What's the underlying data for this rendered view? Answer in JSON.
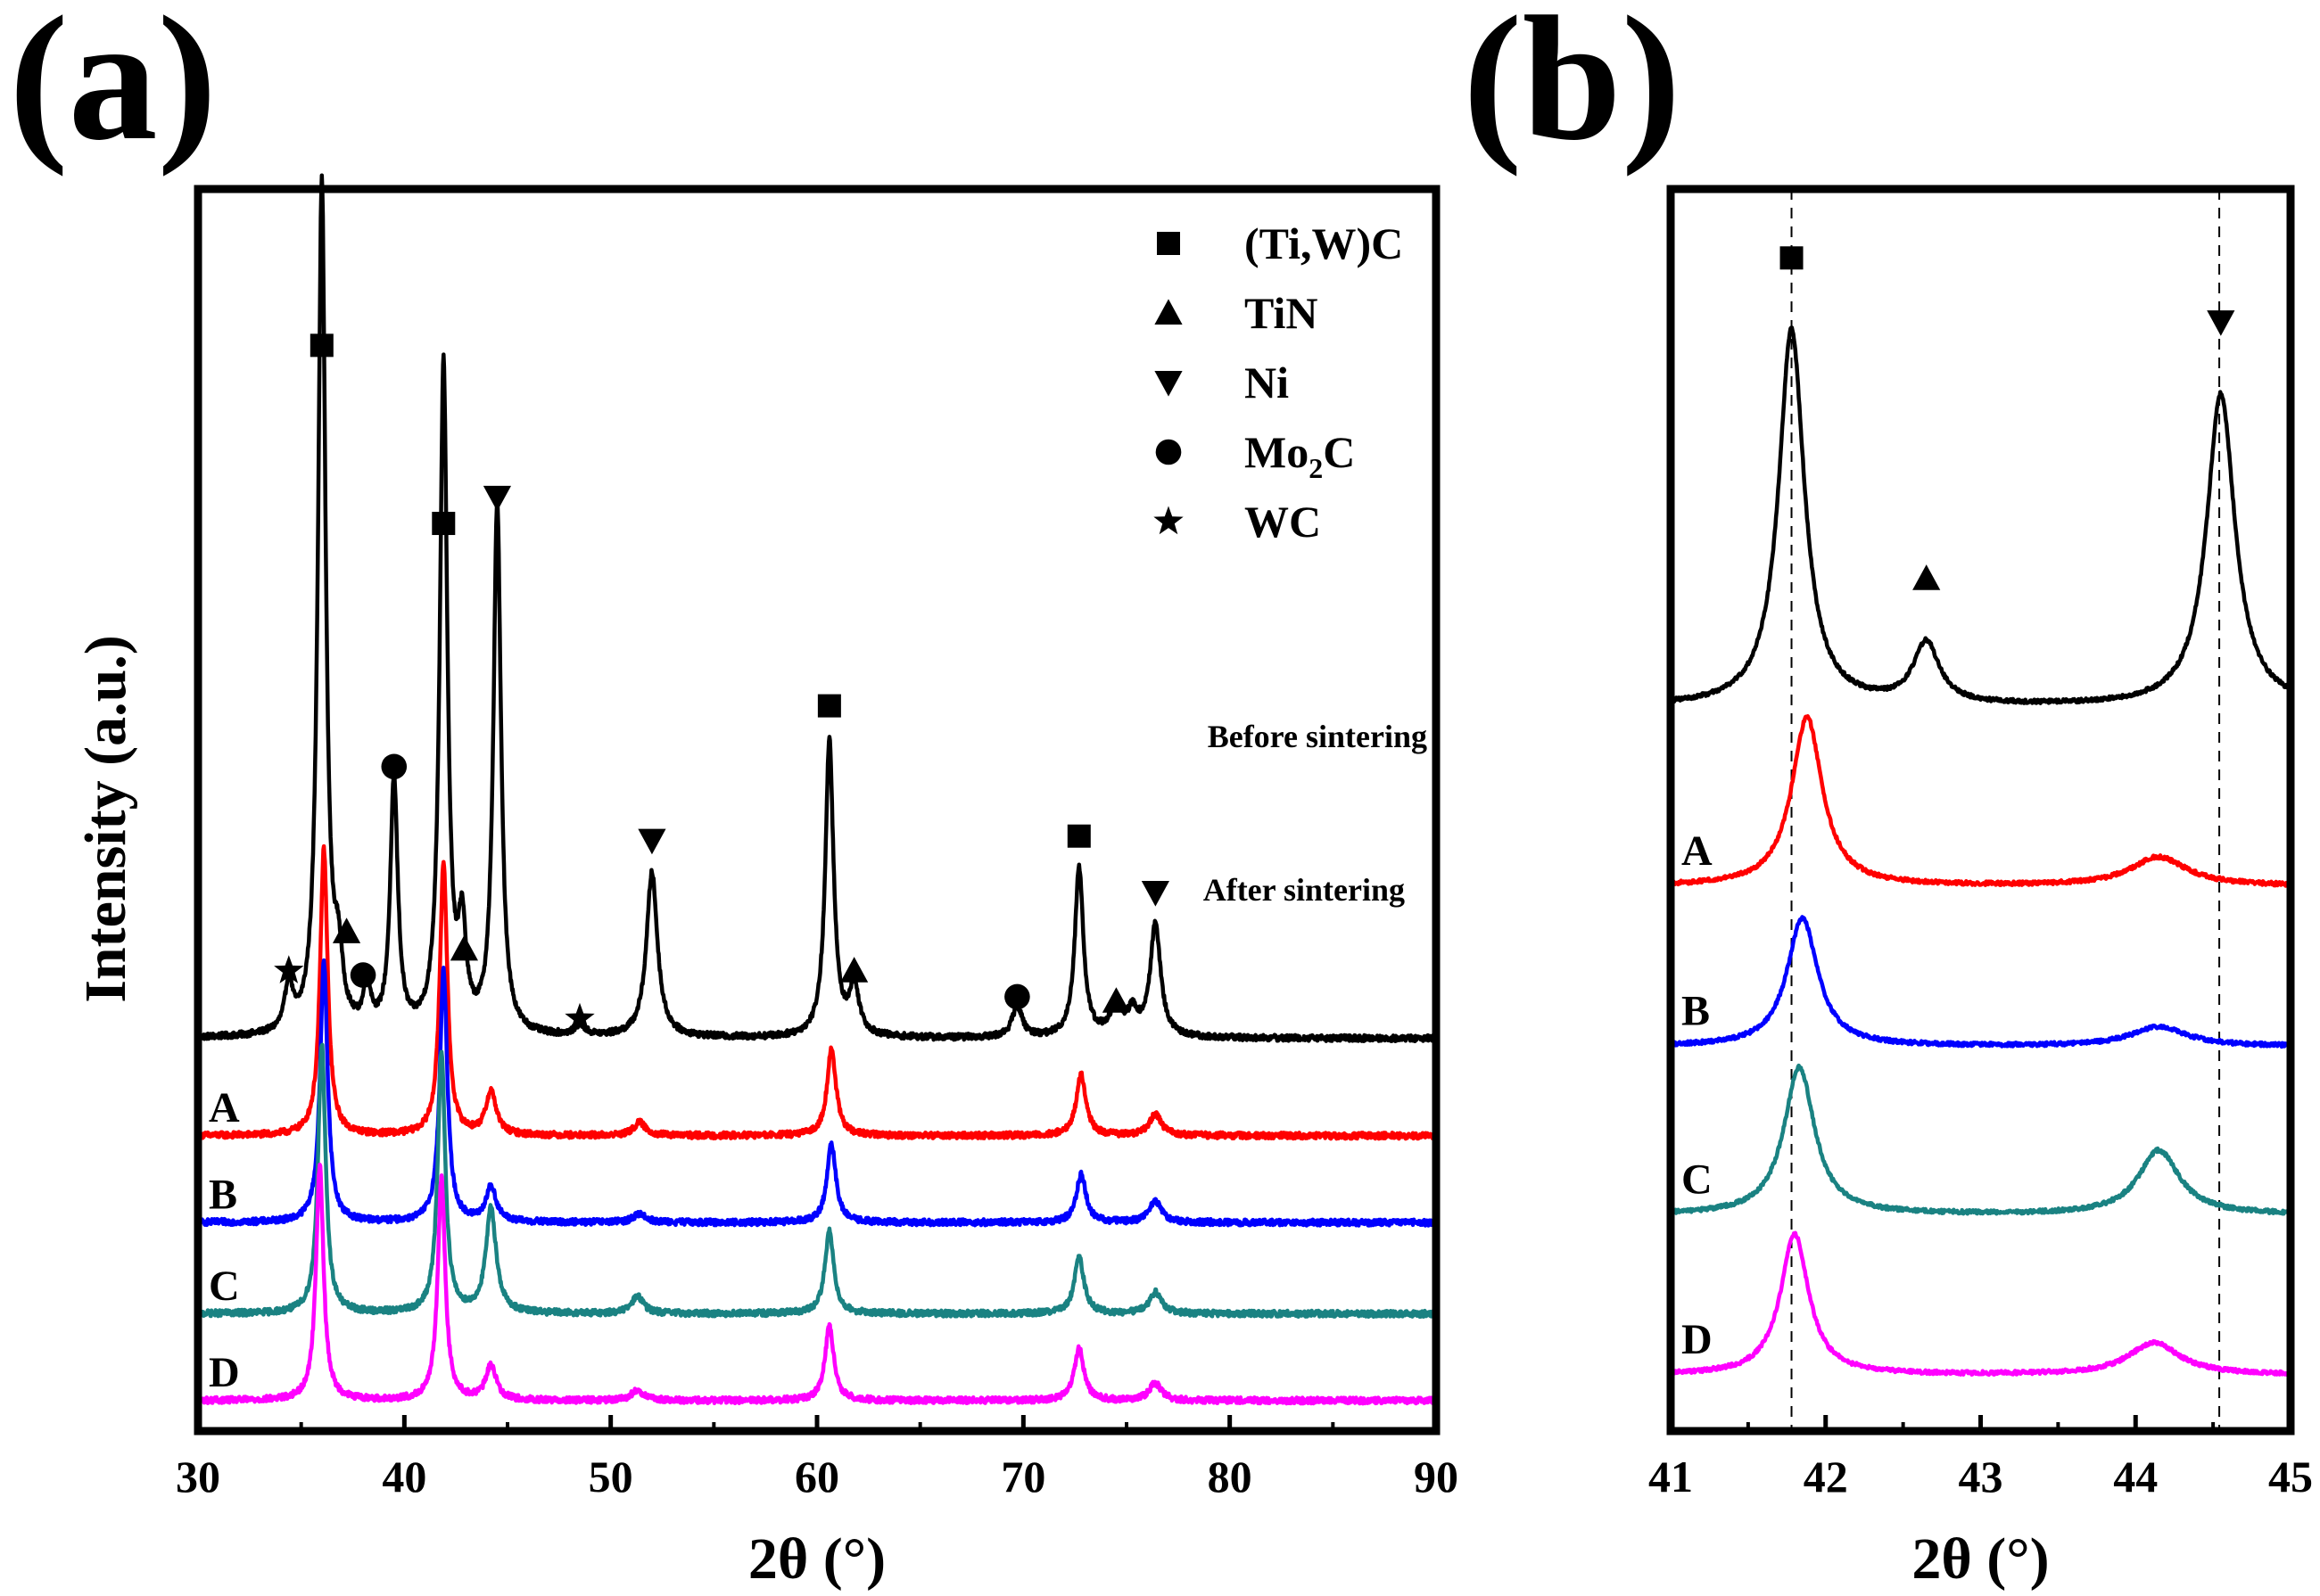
{
  "panels": {
    "a_letter": "(a)",
    "b_letter": "(b)"
  },
  "colors": {
    "Before sintering": "#000000",
    "A": "#ff0000",
    "B": "#0000ff",
    "C": "#1a8282",
    "D": "#ff00ff"
  },
  "legend": [
    {
      "symbol": "square-marker-icon",
      "label": "(Ti,W)C"
    },
    {
      "symbol": "triangle-up-marker-icon",
      "label": "TiN"
    },
    {
      "symbol": "triangle-down-marker-icon",
      "label": "Ni"
    },
    {
      "symbol": "circle-marker-icon",
      "label": "Mo",
      "sub": "2",
      "suffix": "C"
    },
    {
      "symbol": "star-marker-icon",
      "label": "WC"
    }
  ],
  "notes": {
    "before": "Before sintering",
    "after": "After sintering"
  },
  "chart_data": [
    {
      "type": "line",
      "panel": "(a)",
      "xlabel": "2θ (°)",
      "ylabel": "Intensity (a.u.)",
      "xlim": [
        30,
        90
      ],
      "xticks": [
        30,
        40,
        50,
        60,
        70,
        80,
        90
      ],
      "yticks": "none",
      "grid": false,
      "legend_position": "top-right",
      "series": [
        {
          "name": "Before sintering",
          "baseline": 1.12,
          "peaks": [
            {
              "x": 34.4,
              "h": 0.55,
              "w": 0.22
            },
            {
              "x": 36.0,
              "h": 9.8,
              "w": 0.22
            },
            {
              "x": 36.8,
              "h": 0.7,
              "w": 0.25
            },
            {
              "x": 38.2,
              "h": 0.5,
              "w": 0.22
            },
            {
              "x": 39.5,
              "h": 2.9,
              "w": 0.22
            },
            {
              "x": 41.9,
              "h": 7.7,
              "w": 0.22
            },
            {
              "x": 42.8,
              "h": 1.1,
              "w": 0.22
            },
            {
              "x": 44.5,
              "h": 6.1,
              "w": 0.22
            },
            {
              "x": 48.5,
              "h": 0.12,
              "w": 0.3
            },
            {
              "x": 52.0,
              "h": 1.9,
              "w": 0.32
            },
            {
              "x": 60.6,
              "h": 3.4,
              "w": 0.24
            },
            {
              "x": 61.8,
              "h": 0.55,
              "w": 0.3
            },
            {
              "x": 69.7,
              "h": 0.35,
              "w": 0.3
            },
            {
              "x": 72.7,
              "h": 1.95,
              "w": 0.25
            },
            {
              "x": 74.5,
              "h": 0.3,
              "w": 0.4
            },
            {
              "x": 75.3,
              "h": 0.25,
              "w": 0.3
            },
            {
              "x": 76.4,
              "h": 1.3,
              "w": 0.3
            }
          ]
        },
        {
          "name": "A",
          "baseline": 0.0,
          "peaks": [
            {
              "x": 36.1,
              "h": 3.3,
              "w": 0.22
            },
            {
              "x": 41.9,
              "h": 3.15,
              "w": 0.22
            },
            {
              "x": 44.2,
              "h": 0.5,
              "w": 0.3
            },
            {
              "x": 51.4,
              "h": 0.15,
              "w": 0.35
            },
            {
              "x": 60.7,
              "h": 1.0,
              "w": 0.26
            },
            {
              "x": 72.8,
              "h": 0.7,
              "w": 0.28
            },
            {
              "x": 76.4,
              "h": 0.25,
              "w": 0.35
            }
          ]
        },
        {
          "name": "B",
          "baseline": -1.0,
          "peaks": [
            {
              "x": 36.1,
              "h": 3.0,
              "w": 0.22
            },
            {
              "x": 41.9,
              "h": 2.9,
              "w": 0.22
            },
            {
              "x": 44.2,
              "h": 0.4,
              "w": 0.3
            },
            {
              "x": 51.4,
              "h": 0.1,
              "w": 0.35
            },
            {
              "x": 60.7,
              "h": 0.9,
              "w": 0.26
            },
            {
              "x": 72.8,
              "h": 0.55,
              "w": 0.28
            },
            {
              "x": 76.4,
              "h": 0.25,
              "w": 0.35
            }
          ]
        },
        {
          "name": "C",
          "baseline": -2.05,
          "peaks": [
            {
              "x": 36.0,
              "h": 3.1,
              "w": 0.22
            },
            {
              "x": 41.8,
              "h": 3.0,
              "w": 0.22
            },
            {
              "x": 44.2,
              "h": 1.2,
              "w": 0.3
            },
            {
              "x": 51.3,
              "h": 0.2,
              "w": 0.35
            },
            {
              "x": 60.6,
              "h": 0.95,
              "w": 0.26
            },
            {
              "x": 72.7,
              "h": 0.65,
              "w": 0.28
            },
            {
              "x": 76.4,
              "h": 0.25,
              "w": 0.35
            }
          ]
        },
        {
          "name": "D",
          "baseline": -3.05,
          "peaks": [
            {
              "x": 35.9,
              "h": 2.7,
              "w": 0.22
            },
            {
              "x": 41.8,
              "h": 2.55,
              "w": 0.22
            },
            {
              "x": 44.2,
              "h": 0.4,
              "w": 0.3
            },
            {
              "x": 51.3,
              "h": 0.12,
              "w": 0.35
            },
            {
              "x": 60.6,
              "h": 0.85,
              "w": 0.26
            },
            {
              "x": 72.7,
              "h": 0.6,
              "w": 0.28
            },
            {
              "x": 76.4,
              "h": 0.2,
              "w": 0.35
            }
          ]
        }
      ],
      "annotations": [
        {
          "marker": "square",
          "x": 36.0,
          "y": 9.1
        },
        {
          "marker": "square",
          "x": 41.9,
          "y": 7.05
        },
        {
          "marker": "square",
          "x": 60.6,
          "y": 4.95
        },
        {
          "marker": "square",
          "x": 72.7,
          "y": 3.45
        },
        {
          "marker": "triangle-up",
          "x": 37.2,
          "y": 2.35
        },
        {
          "marker": "triangle-up",
          "x": 42.9,
          "y": 2.15
        },
        {
          "marker": "triangle-up",
          "x": 61.8,
          "y": 1.9
        },
        {
          "marker": "triangle-up",
          "x": 74.5,
          "y": 1.55
        },
        {
          "marker": "triangle-down",
          "x": 44.5,
          "y": 7.35
        },
        {
          "marker": "triangle-down",
          "x": 52.0,
          "y": 3.4
        },
        {
          "marker": "triangle-down",
          "x": 76.4,
          "y": 2.8
        },
        {
          "marker": "circle",
          "x": 39.5,
          "y": 4.25
        },
        {
          "marker": "circle",
          "x": 38.0,
          "y": 1.85
        },
        {
          "marker": "circle",
          "x": 69.7,
          "y": 1.6
        },
        {
          "marker": "star",
          "x": 34.4,
          "y": 1.9
        },
        {
          "marker": "star",
          "x": 48.5,
          "y": 1.35
        }
      ],
      "trace_labels": [
        "A",
        "B",
        "C",
        "D"
      ]
    },
    {
      "type": "line",
      "panel": "(b)",
      "xlabel": "2θ (°)",
      "xlim": [
        41,
        45
      ],
      "xticks": [
        41,
        42,
        43,
        44,
        45
      ],
      "yticks": "none",
      "grid": false,
      "reference_lines_x": [
        41.78,
        44.54
      ],
      "series": [
        {
          "name": "Before sintering",
          "baseline": 1.12,
          "peaks": [
            {
              "x": 41.78,
              "h": 2.35,
              "w": 0.1
            },
            {
              "x": 42.65,
              "h": 0.38,
              "w": 0.1
            },
            {
              "x": 44.55,
              "h": 1.95,
              "w": 0.11
            }
          ]
        },
        {
          "name": "A",
          "baseline": 0.0,
          "peaks": [
            {
              "x": 41.88,
              "h": 1.05,
              "w": 0.12
            },
            {
              "x": 44.15,
              "h": 0.18,
              "w": 0.22
            }
          ]
        },
        {
          "name": "B",
          "baseline": -1.0,
          "peaks": [
            {
              "x": 41.85,
              "h": 0.8,
              "w": 0.12
            },
            {
              "x": 44.15,
              "h": 0.12,
              "w": 0.22
            }
          ]
        },
        {
          "name": "C",
          "baseline": -2.05,
          "peaks": [
            {
              "x": 41.83,
              "h": 0.92,
              "w": 0.12
            },
            {
              "x": 44.15,
              "h": 0.4,
              "w": 0.16
            }
          ]
        },
        {
          "name": "D",
          "baseline": -3.05,
          "peaks": [
            {
              "x": 41.8,
              "h": 0.88,
              "w": 0.11
            },
            {
              "x": 44.12,
              "h": 0.2,
              "w": 0.2
            }
          ]
        }
      ],
      "annotations": [
        {
          "marker": "square",
          "x": 41.78,
          "y": 3.92
        },
        {
          "marker": "triangle-up",
          "x": 42.65,
          "y": 1.92
        },
        {
          "marker": "triangle-down",
          "x": 44.55,
          "y": 3.52
        }
      ],
      "trace_labels": [
        "A",
        "B",
        "C",
        "D"
      ]
    }
  ]
}
